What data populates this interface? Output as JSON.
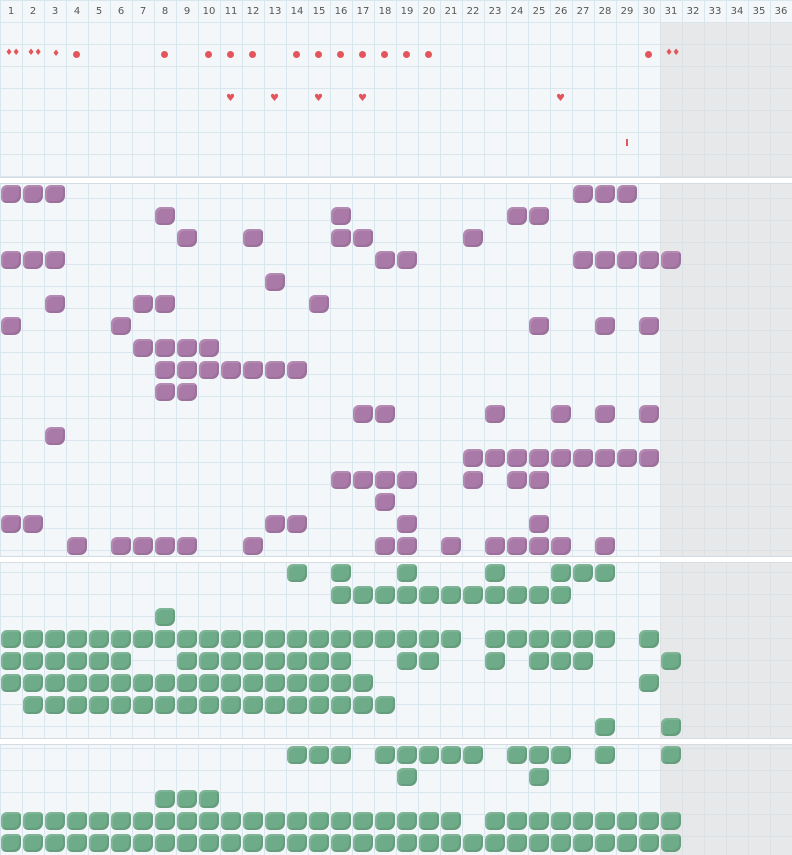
{
  "days": [
    "1",
    "2",
    "3",
    "4",
    "5",
    "6",
    "7",
    "8",
    "9",
    "10",
    "11",
    "12",
    "13",
    "14",
    "15",
    "16",
    "17",
    "18",
    "19",
    "20",
    "21",
    "22",
    "23",
    "24",
    "25",
    "26",
    "27",
    "28",
    "29",
    "30",
    "31",
    "32",
    "33",
    "34",
    "35",
    "36"
  ],
  "current_day": 30,
  "colors": {
    "accent_red": "#e2555a",
    "purple": "#a97aa8",
    "green": "#6eab88",
    "grid": "#d9e6ee"
  },
  "icons": {
    "drops_two": "♦♦",
    "drop_one": "♦",
    "dot": "●",
    "heart": "♥"
  },
  "sections": {
    "symptoms": {
      "rows": [
        {
          "r": 0,
          "marks": [
            {
              "d": 1,
              "k": "drops2"
            },
            {
              "d": 2,
              "k": "drops2"
            },
            {
              "d": 3,
              "k": "drop1"
            },
            {
              "d": 4,
              "k": "dot"
            },
            {
              "d": 8,
              "k": "dot"
            },
            {
              "d": 10,
              "k": "dot"
            },
            {
              "d": 11,
              "k": "dot"
            },
            {
              "d": 12,
              "k": "dot"
            },
            {
              "d": 14,
              "k": "dot"
            },
            {
              "d": 15,
              "k": "dot"
            },
            {
              "d": 16,
              "k": "dot"
            },
            {
              "d": 17,
              "k": "dot"
            },
            {
              "d": 18,
              "k": "dot"
            },
            {
              "d": 19,
              "k": "dot"
            },
            {
              "d": 20,
              "k": "dot"
            },
            {
              "d": 30,
              "k": "dot"
            },
            {
              "d": 31,
              "k": "drops2"
            }
          ]
        },
        {
          "r": 2,
          "marks": [
            {
              "d": 11,
              "k": "heart"
            },
            {
              "d": 13,
              "k": "heart"
            },
            {
              "d": 15,
              "k": "heart"
            },
            {
              "d": 17,
              "k": "heart"
            },
            {
              "d": 26,
              "k": "heart"
            }
          ]
        },
        {
          "r": 4,
          "marks": [
            {
              "d": 29,
              "k": "tick"
            }
          ]
        }
      ]
    },
    "purple": {
      "rows": [
        [
          1,
          2,
          3,
          27,
          28,
          29
        ],
        [
          8,
          16,
          24,
          25
        ],
        [
          9,
          12,
          16,
          17,
          22
        ],
        [
          1,
          2,
          3,
          18,
          19,
          27,
          28,
          29,
          30,
          31
        ],
        [
          13
        ],
        [
          3,
          7,
          8,
          15
        ],
        [
          1,
          6,
          25,
          28,
          30
        ],
        [
          7,
          8,
          9,
          10
        ],
        [
          8,
          9,
          10,
          11,
          12,
          13,
          14
        ],
        [
          8,
          9
        ],
        [
          17,
          18,
          23,
          26,
          28,
          30
        ],
        [
          3
        ],
        [
          22,
          23,
          24,
          25,
          26,
          27,
          28,
          29,
          30
        ],
        [
          16,
          17,
          18,
          19,
          22,
          24,
          25
        ],
        [
          18
        ],
        [
          1,
          2,
          13,
          14,
          19,
          25
        ],
        [
          4,
          6,
          7,
          8,
          9,
          12,
          18,
          19,
          21,
          23,
          24,
          25,
          26,
          28
        ]
      ]
    },
    "green_a": {
      "rows": [
        [
          14,
          16,
          19,
          23,
          26,
          27,
          28
        ],
        [
          16,
          17,
          18,
          19,
          20,
          21,
          22,
          23,
          24,
          25,
          26
        ],
        [
          8
        ],
        [
          1,
          2,
          3,
          4,
          5,
          6,
          7,
          8,
          9,
          10,
          11,
          12,
          13,
          14,
          15,
          16,
          17,
          18,
          19,
          20,
          21,
          23,
          24,
          25,
          26,
          27,
          28,
          30
        ],
        [
          1,
          2,
          3,
          4,
          5,
          6,
          9,
          10,
          11,
          12,
          13,
          14,
          15,
          16,
          19,
          20,
          23,
          25,
          26,
          27,
          31
        ],
        [
          1,
          2,
          3,
          4,
          5,
          6,
          7,
          8,
          9,
          10,
          11,
          12,
          13,
          14,
          15,
          16,
          17,
          30
        ],
        [
          2,
          3,
          4,
          5,
          6,
          7,
          8,
          9,
          10,
          11,
          12,
          13,
          14,
          15,
          16,
          17,
          18
        ],
        [
          28,
          31
        ]
      ]
    },
    "green_b": {
      "rows": [
        [
          14,
          15,
          16,
          18,
          19,
          20,
          21,
          22,
          24,
          25,
          26,
          28,
          31
        ],
        [
          19,
          25
        ],
        [
          8,
          9,
          10
        ],
        [
          1,
          2,
          3,
          4,
          5,
          6,
          7,
          8,
          9,
          10,
          11,
          12,
          13,
          14,
          15,
          16,
          17,
          18,
          19,
          20,
          21,
          23,
          24,
          25,
          26,
          27,
          28,
          29,
          30,
          31
        ],
        [
          1,
          2,
          3,
          4,
          5,
          6,
          7,
          8,
          9,
          10,
          11,
          12,
          13,
          14,
          15,
          16,
          17,
          18,
          19,
          20,
          21,
          22,
          23,
          24,
          25,
          26,
          27,
          28,
          29,
          30,
          31
        ]
      ]
    }
  }
}
